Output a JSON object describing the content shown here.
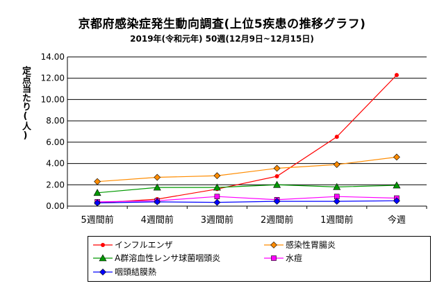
{
  "title": "京都府感染症発生動向調査(上位5疾患の推移グラフ)",
  "subtitle": "2019年(令和元年) 50週(12月9日~12月15日)",
  "chart_data": {
    "type": "line",
    "ylabel": "定点当たり(人)",
    "xlabel": "",
    "ylim": [
      0,
      14
    ],
    "y_ticks": [
      "0.00",
      "2.00",
      "4.00",
      "6.00",
      "8.00",
      "10.00",
      "12.00",
      "14.00"
    ],
    "grid": "horizontal",
    "legend_position": "bottom",
    "categories": [
      "5週間前",
      "4週間前",
      "3週間前",
      "2週間前",
      "1週間前",
      "今週"
    ],
    "series": [
      {
        "name": "インフルエンザ",
        "color": "#ff0000",
        "marker": "circle",
        "values": [
          0.3,
          0.65,
          1.6,
          2.8,
          6.5,
          12.3
        ]
      },
      {
        "name": "感染性胃腸炎",
        "color": "#ff8c00",
        "marker": "diamond",
        "values": [
          2.3,
          2.7,
          2.85,
          3.55,
          3.9,
          4.6
        ]
      },
      {
        "name": "A群溶血性レンサ球菌咽頭炎",
        "color": "#009900",
        "marker": "triangle",
        "values": [
          1.25,
          1.75,
          1.75,
          2.0,
          1.8,
          1.95
        ]
      },
      {
        "name": "水痘",
        "color": "#ff00ff",
        "marker": "square",
        "values": [
          0.4,
          0.5,
          0.9,
          0.6,
          0.9,
          0.75
        ]
      },
      {
        "name": "咽頭結膜熱",
        "color": "#0000ff",
        "marker": "diamond",
        "values": [
          0.3,
          0.4,
          0.35,
          0.45,
          0.45,
          0.5
        ]
      }
    ]
  }
}
